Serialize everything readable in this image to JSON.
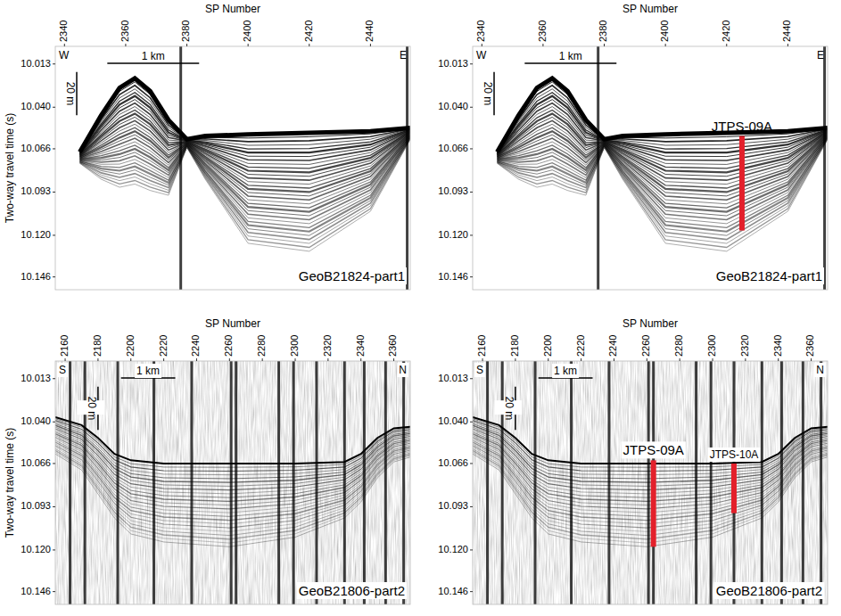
{
  "chart_data": [
    {
      "type": "seismic_profile",
      "title": "GeoB21824-part1",
      "x_label": "SP Number",
      "y_label": "Two-way travel time (s)",
      "xlim": [
        2337,
        2453
      ],
      "xticks": [
        2340,
        2360,
        2380,
        2400,
        2420,
        2440
      ],
      "ylim": [
        10.002,
        10.154
      ],
      "yticks": [
        10.013,
        {
          "value": 10.04,
          "label": "10.040"
        },
        10.066,
        10.093,
        {
          "value": 10.12,
          "label": "10.120"
        },
        10.146
      ],
      "direction": [
        "W",
        "E"
      ],
      "scale_x": {
        "label": "1 km",
        "sp": [
          2354,
          2384
        ]
      },
      "scale_y": {
        "label": "20 m",
        "sp": 2344,
        "twt": [
          10.018,
          10.045
        ]
      },
      "seafloor": {
        "sp": [
          2345,
          2352,
          2358,
          2363,
          2368,
          2374,
          2380,
          2386,
          2400,
          2420,
          2440,
          2453
        ],
        "twt": [
          10.068,
          10.045,
          10.028,
          10.022,
          10.03,
          10.048,
          10.06,
          10.058,
          10.057,
          10.056,
          10.055,
          10.053
        ],
        "base_twt": [
          10.075,
          10.085,
          10.09,
          10.088,
          10.092,
          10.095,
          10.065,
          10.085,
          10.125,
          10.13,
          10.105,
          10.06
        ]
      },
      "dark_traces": [
        2378,
        2452
      ],
      "cores": []
    },
    {
      "type": "seismic_profile",
      "title": "GeoB21824-part1",
      "x_label": "SP Number",
      "xlim": [
        2337,
        2453
      ],
      "xticks": [
        2340,
        2360,
        2380,
        2400,
        2420,
        2440
      ],
      "ylim": [
        10.002,
        10.154
      ],
      "yticks": [
        10.013,
        {
          "value": 10.04,
          "label": "10.040"
        },
        10.066,
        10.093,
        {
          "value": 10.12,
          "label": "10.120"
        },
        10.146
      ],
      "direction": [
        "W",
        "E"
      ],
      "scale_x": {
        "label": "1 km",
        "sp": [
          2354,
          2384
        ]
      },
      "scale_y": {
        "label": "20 m",
        "sp": 2344,
        "twt": [
          10.018,
          10.045
        ]
      },
      "seafloor": {
        "sp": [
          2345,
          2352,
          2358,
          2363,
          2368,
          2374,
          2380,
          2386,
          2400,
          2420,
          2440,
          2453
        ],
        "twt": [
          10.068,
          10.045,
          10.028,
          10.022,
          10.03,
          10.048,
          10.06,
          10.058,
          10.057,
          10.056,
          10.055,
          10.053
        ],
        "base_twt": [
          10.075,
          10.085,
          10.09,
          10.088,
          10.092,
          10.095,
          10.065,
          10.085,
          10.125,
          10.13,
          10.105,
          10.06
        ]
      },
      "dark_traces": [
        2378,
        2452
      ],
      "cores": [
        {
          "name": "JTPS-09A",
          "sp": 2425,
          "twt_top": 10.058,
          "twt_bottom": 10.117
        }
      ]
    },
    {
      "type": "seismic_profile",
      "title": "GeoB21806-part2",
      "x_label": "SP Number",
      "y_label": "Two-way travel time (s)",
      "xlim": [
        2154,
        2370
      ],
      "xticks": [
        2160,
        2180,
        2200,
        2220,
        2240,
        2260,
        2280,
        2300,
        2320,
        2340,
        2360
      ],
      "ylim": [
        10.002,
        10.154
      ],
      "yticks": [
        10.013,
        {
          "value": 10.04,
          "label": "10.040"
        },
        10.066,
        10.093,
        {
          "value": 10.12,
          "label": "10.120"
        },
        10.146
      ],
      "direction": [
        "S",
        "N"
      ],
      "scale_x": {
        "label": "1 km",
        "sp": [
          2194,
          2227
        ]
      },
      "scale_y": {
        "label": "20 m",
        "sp": 2180,
        "twt": [
          10.018,
          10.045
        ]
      },
      "seafloor": {
        "sp": [
          2154,
          2170,
          2180,
          2190,
          2200,
          2220,
          2260,
          2300,
          2330,
          2340,
          2350,
          2360,
          2370
        ],
        "twt": [
          10.037,
          10.042,
          10.05,
          10.06,
          10.064,
          10.066,
          10.066,
          10.066,
          10.065,
          10.06,
          10.05,
          10.044,
          10.043
        ],
        "base_twt": [
          10.06,
          10.07,
          10.085,
          10.1,
          10.11,
          10.115,
          10.118,
          10.112,
          10.1,
          10.09,
          10.075,
          10.065,
          10.062
        ]
      },
      "dark_traces": [
        2163,
        2172,
        2192,
        2214,
        2237,
        2261,
        2264,
        2290,
        2299,
        2313,
        2330,
        2342,
        2355,
        2366
      ],
      "cores": []
    },
    {
      "type": "seismic_profile",
      "title": "GeoB21806-part2",
      "x_label": "SP Number",
      "xlim": [
        2154,
        2370
      ],
      "xticks": [
        2160,
        2180,
        2200,
        2220,
        2240,
        2260,
        2280,
        2300,
        2320,
        2340,
        2360
      ],
      "ylim": [
        10.002,
        10.154
      ],
      "yticks": [
        10.013,
        {
          "value": 10.04,
          "label": "10.040"
        },
        10.066,
        10.093,
        {
          "value": 10.12,
          "label": "10.120"
        },
        10.146
      ],
      "direction": [
        "S",
        "N"
      ],
      "scale_x": {
        "label": "1 km",
        "sp": [
          2194,
          2227
        ]
      },
      "scale_y": {
        "label": "20 m",
        "sp": 2180,
        "twt": [
          10.018,
          10.045
        ]
      },
      "seafloor": {
        "sp": [
          2154,
          2170,
          2180,
          2190,
          2200,
          2220,
          2260,
          2300,
          2330,
          2340,
          2350,
          2360,
          2370
        ],
        "twt": [
          10.037,
          10.042,
          10.05,
          10.06,
          10.064,
          10.066,
          10.066,
          10.066,
          10.065,
          10.06,
          10.05,
          10.044,
          10.043
        ],
        "base_twt": [
          10.06,
          10.07,
          10.085,
          10.1,
          10.11,
          10.115,
          10.118,
          10.112,
          10.1,
          10.09,
          10.075,
          10.065,
          10.062
        ]
      },
      "dark_traces": [
        2163,
        2172,
        2192,
        2214,
        2237,
        2261,
        2264,
        2290,
        2299,
        2313,
        2330,
        2342,
        2355,
        2366
      ],
      "cores": [
        {
          "name": "JTPS-09A",
          "sp": 2264,
          "twt_top": 10.064,
          "twt_bottom": 10.118
        },
        {
          "name": "JTPS-10A",
          "sp": 2313,
          "twt_top": 10.066,
          "twt_bottom": 10.097
        }
      ]
    }
  ]
}
